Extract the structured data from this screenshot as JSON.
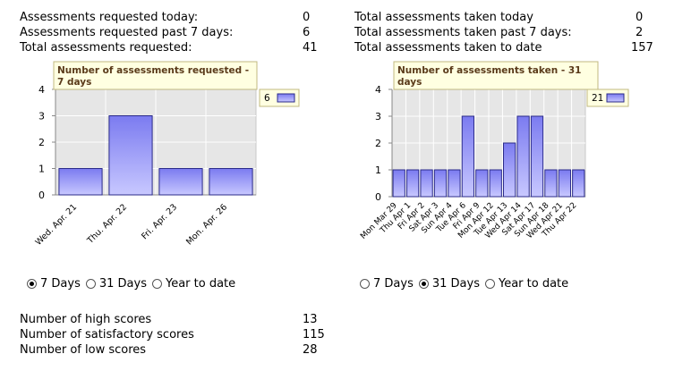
{
  "left_stats": {
    "rows": [
      {
        "label": "Assessments requested today:",
        "value": "0"
      },
      {
        "label": "Assessments requested past 7 days:",
        "value": "6"
      },
      {
        "label": "Total assessments requested:",
        "value": "41"
      }
    ]
  },
  "right_stats": {
    "rows": [
      {
        "label": "Total assessments taken today",
        "value": "0"
      },
      {
        "label": "Total assessments taken past 7 days:",
        "value": "2"
      },
      {
        "label": "Total assessments taken to date",
        "value": "157"
      }
    ]
  },
  "chart_data": [
    {
      "type": "bar",
      "title": "Number of assessments requested - 7 days",
      "categories": [
        "Wed. Apr. 21",
        "Thu. Apr. 22",
        "Fri. Apr. 23",
        "Mon. Apr. 26"
      ],
      "values": [
        1,
        3,
        1,
        1
      ],
      "legend": "6",
      "ylim": [
        0,
        4
      ],
      "yticks": [
        "0",
        "1",
        "2",
        "3",
        "4"
      ],
      "grid": true,
      "legend_placement": "right"
    },
    {
      "type": "bar",
      "title": "Number of assessments taken - 31 days",
      "categories": [
        "Mon Mar 29",
        "Thu Apr 1",
        "Fri Apr 2",
        "Sat Apr 3",
        "Sun Apr 4",
        "Tue Apr 6",
        "Fri Apr 9",
        "Mon Apr 12",
        "Tue Apr 13",
        "Wed Apr 14",
        "Sat Apr 17",
        "Sun Apr 18",
        "Wed Apr 21",
        "Thu Apr 22"
      ],
      "values": [
        1,
        1,
        1,
        1,
        1,
        3,
        1,
        1,
        2,
        3,
        3,
        1,
        1,
        1
      ],
      "legend": "21",
      "ylim": [
        0,
        4
      ],
      "yticks": [
        "0",
        "1",
        "2",
        "3",
        "4"
      ],
      "grid": true,
      "legend_placement": "right"
    }
  ],
  "left_radios": [
    {
      "label": "7 Days",
      "checked": true
    },
    {
      "label": "31 Days",
      "checked": false
    },
    {
      "label": "Year to date",
      "checked": false
    }
  ],
  "right_radios": [
    {
      "label": "7 Days",
      "checked": false
    },
    {
      "label": "31 Days",
      "checked": true
    },
    {
      "label": "Year to date",
      "checked": false
    }
  ],
  "scores": {
    "rows": [
      {
        "label": "Number of high scores",
        "value": "13"
      },
      {
        "label": "Number of satisfactory scores",
        "value": "115"
      },
      {
        "label": "Number of low scores",
        "value": "28"
      }
    ]
  },
  "colors": {
    "bar_top": "#7b7bf0",
    "bar_bottom": "#c8c8ff",
    "plot_bg": "#e6e6e6",
    "title_bg": "#ffffe1"
  }
}
